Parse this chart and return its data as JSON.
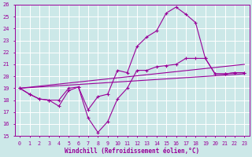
{
  "xlabel": "Windchill (Refroidissement éolien,°C)",
  "bg_color": "#cce8e8",
  "line_color": "#990099",
  "grid_color": "#ffffff",
  "xlim": [
    -0.5,
    23.5
  ],
  "ylim": [
    15,
    26
  ],
  "xticks": [
    0,
    1,
    2,
    3,
    4,
    5,
    6,
    7,
    8,
    9,
    10,
    11,
    12,
    13,
    14,
    15,
    16,
    17,
    18,
    19,
    20,
    21,
    22,
    23
  ],
  "yticks": [
    15,
    16,
    17,
    18,
    19,
    20,
    21,
    22,
    23,
    24,
    25,
    26
  ],
  "line1_x": [
    0,
    1,
    2,
    3,
    4,
    5,
    6,
    7,
    8,
    9,
    10,
    11,
    12,
    13,
    14,
    15,
    16,
    17,
    18,
    19,
    20,
    21,
    22,
    23
  ],
  "line1_y": [
    19.0,
    18.5,
    18.1,
    18.0,
    18.0,
    19.0,
    19.1,
    17.2,
    18.3,
    18.5,
    20.5,
    20.3,
    22.5,
    23.3,
    23.8,
    25.3,
    25.8,
    25.2,
    24.5,
    21.5,
    20.2,
    20.2,
    20.3,
    20.3
  ],
  "line2_x": [
    0,
    1,
    2,
    3,
    4,
    5,
    6,
    7,
    8,
    9,
    10,
    11,
    12,
    13,
    14,
    15,
    16,
    17,
    18,
    19,
    20,
    21,
    22,
    23
  ],
  "line2_y": [
    19.0,
    18.5,
    18.1,
    18.0,
    17.5,
    18.8,
    19.1,
    16.5,
    15.3,
    16.2,
    18.1,
    19.0,
    20.5,
    20.5,
    20.8,
    20.9,
    21.0,
    21.5,
    21.5,
    21.5,
    20.2,
    20.2,
    20.3,
    20.3
  ],
  "line3_x": [
    0,
    23
  ],
  "line3_y": [
    19.0,
    21.0
  ],
  "line4_x": [
    0,
    23
  ],
  "line4_y": [
    19.0,
    20.2
  ]
}
